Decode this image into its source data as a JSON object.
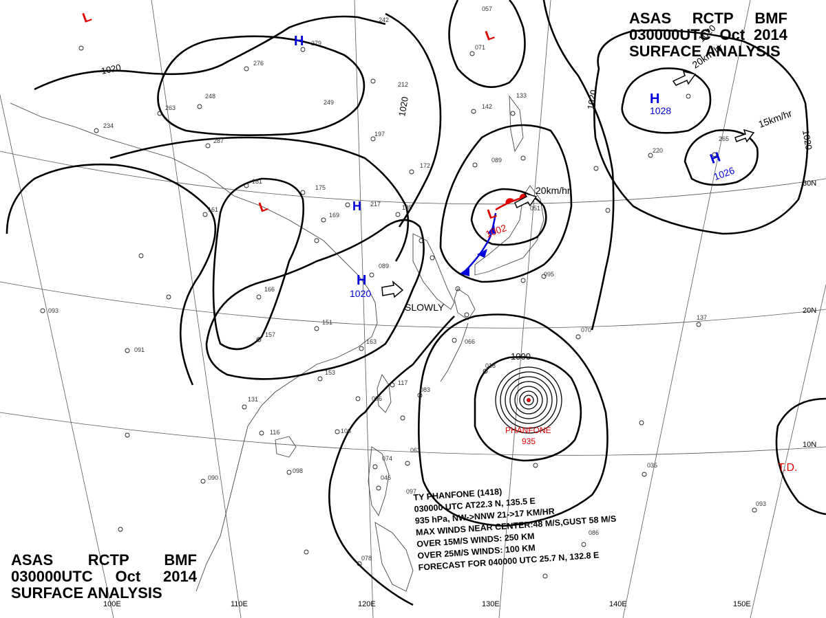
{
  "header_top_right": {
    "line1": [
      "ASAS",
      "RCTP",
      "BMF"
    ],
    "line2": [
      "030000UTC",
      "Oct",
      "2014"
    ],
    "line3": "SURFACE ANALYSIS"
  },
  "header_bottom_left": {
    "line1": [
      "ASAS",
      "RCTP",
      "BMF"
    ],
    "line2": [
      "030000UTC",
      "Oct",
      "2014"
    ],
    "line3": "SURFACE ANALYSIS"
  },
  "isobar_labels": [
    "1020",
    "1020",
    "1020",
    "1020",
    "1020",
    "1000"
  ],
  "pressure_centers": [
    {
      "type": "L",
      "value": "",
      "color": "#e00000"
    },
    {
      "type": "H",
      "value": "",
      "color": "#0000dd"
    },
    {
      "type": "L",
      "value": "",
      "color": "#e00000"
    },
    {
      "type": "L",
      "value": "",
      "color": "#e00000"
    },
    {
      "type": "H",
      "value": "",
      "color": "#0000dd"
    },
    {
      "type": "H",
      "value": "1020",
      "color": "#0000dd"
    },
    {
      "type": "L",
      "value": "1002",
      "color": "#e00000"
    },
    {
      "type": "H",
      "value": "1028",
      "color": "#0000dd"
    },
    {
      "type": "H",
      "value": "1026",
      "color": "#0000dd"
    }
  ],
  "motion_labels": [
    "20km/hr",
    "15km/hr",
    "20km/hr",
    "SLOWLY"
  ],
  "typhoon": {
    "name": "PHANFONE",
    "pressure": "935"
  },
  "tropical_depression": "T.D.",
  "latitude_labels": [
    "30N",
    "20N",
    "10N"
  ],
  "longitude_labels": [
    "100E",
    "110E",
    "120E",
    "130E",
    "140E",
    "150E"
  ],
  "bulletin": [
    "TY  PHANFONE  (1418)",
    "030000 UTC  AT22.3 N, 135.5 E",
    "935 hPa, NW->NNW  21->17 KM/HR",
    "MAX WINDS NEAR CENTER:48 M/S,GUST 58 M/S",
    "OVER 15M/S WINDS: 250 KM",
    "OVER 25M/S WINDS: 100 KM",
    "FORECAST FOR 040000 UTC 25.7 N, 132.8 E"
  ],
  "station_values": [
    "279",
    "276",
    "248",
    "249",
    "263",
    "234",
    "287",
    "181",
    "175",
    "169",
    "161",
    "166",
    "151",
    "157",
    "163",
    "153",
    "131",
    "116",
    "106",
    "091",
    "090",
    "098",
    "093",
    "089",
    "185",
    "217",
    "172",
    "197",
    "212",
    "242",
    "057",
    "071",
    "133",
    "142",
    "089",
    "051",
    "095",
    "070",
    "066",
    "018",
    "083",
    "096",
    "117",
    "074",
    "063",
    "046",
    "097",
    "078",
    "137",
    "220",
    "265",
    "093",
    "086",
    "035"
  ],
  "colors": {
    "high": "#0000dd",
    "low": "#e00000",
    "isobar": "#000000",
    "coast": "#444444",
    "grid": "#555555"
  }
}
